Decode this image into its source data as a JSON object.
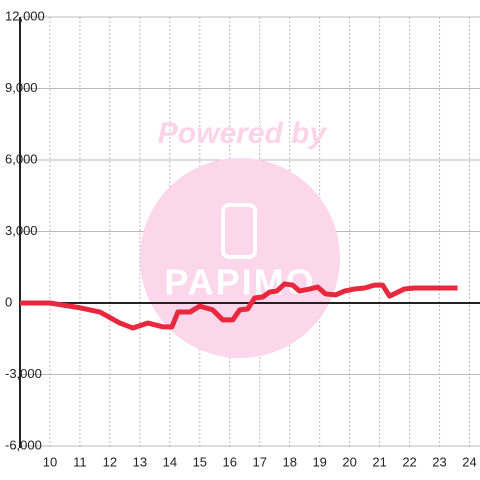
{
  "chart_data": {
    "type": "line",
    "watermark": "Powered by",
    "logo": "PAPIMO",
    "xlim": [
      9,
      24.35
    ],
    "xticks": [
      10,
      11,
      12,
      13,
      14,
      15,
      16,
      17,
      18,
      19,
      20,
      21,
      22,
      23,
      24
    ],
    "ylim": [
      -6000,
      12000
    ],
    "yticks": [
      {
        "value": -6000,
        "label": "-6,000"
      },
      {
        "value": -3000,
        "label": "-3,000"
      },
      0,
      {
        "value": 3000,
        "label": "3,000"
      },
      {
        "value": 6000,
        "label": "6,000"
      },
      {
        "value": 9000,
        "label": "9,000"
      },
      {
        "value": 12000,
        "label": "12,000"
      }
    ],
    "grid": true,
    "series": [
      {
        "color": "#e8283c",
        "x": [
          9,
          10,
          11,
          11.67,
          12.33,
          12.77,
          13.27,
          13.77,
          14.07,
          14.27,
          14.67,
          15,
          15.43,
          15.77,
          16.1,
          16.33,
          16.6,
          16.83,
          17.1,
          17.33,
          17.57,
          17.83,
          18.1,
          18.33,
          18.67,
          18.93,
          19.2,
          19.53,
          19.83,
          20.17,
          20.5,
          20.83,
          21.1,
          21.33,
          21.83,
          22.17,
          23,
          23.6
        ],
        "values": [
          0,
          0,
          -200,
          -380,
          -840,
          -1050,
          -840,
          -1000,
          -1000,
          -380,
          -380,
          -130,
          -290,
          -710,
          -710,
          -290,
          -250,
          210,
          250,
          460,
          500,
          800,
          750,
          500,
          590,
          670,
          380,
          340,
          500,
          590,
          630,
          750,
          750,
          290,
          590,
          630,
          630,
          630
        ]
      }
    ]
  }
}
